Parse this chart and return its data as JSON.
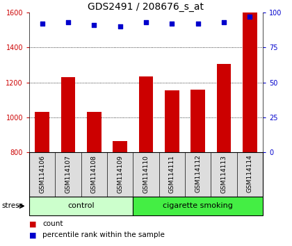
{
  "title": "GDS2491 / 208676_s_at",
  "samples": [
    "GSM114106",
    "GSM114107",
    "GSM114108",
    "GSM114109",
    "GSM114110",
    "GSM114111",
    "GSM114112",
    "GSM114113",
    "GSM114114"
  ],
  "counts": [
    1030,
    1230,
    1030,
    865,
    1235,
    1155,
    1160,
    1305,
    1600
  ],
  "percentile_ranks": [
    92,
    93,
    91,
    90,
    93,
    92,
    92,
    93,
    97
  ],
  "ylim_left": [
    800,
    1600
  ],
  "ylim_right": [
    0,
    100
  ],
  "yticks_left": [
    800,
    1000,
    1200,
    1400,
    1600
  ],
  "yticks_right": [
    0,
    25,
    50,
    75,
    100
  ],
  "groups": [
    {
      "label": "control",
      "indices": [
        0,
        1,
        2,
        3
      ],
      "color": "#ccffcc"
    },
    {
      "label": "cigarette smoking",
      "indices": [
        4,
        5,
        6,
        7,
        8
      ],
      "color": "#44ee44"
    }
  ],
  "bar_color": "#cc0000",
  "dot_color": "#0000cc",
  "bar_width": 0.55,
  "grid_color": "black",
  "grid_linestyle": "dotted",
  "stress_label": "stress",
  "legend_count_label": "count",
  "legend_pct_label": "percentile rank within the sample",
  "left_tick_color": "#cc0000",
  "right_tick_color": "#0000cc",
  "title_fontsize": 10,
  "tick_fontsize": 7,
  "label_fontsize": 7.5,
  "sample_fontsize": 6.5,
  "group_label_fontsize": 8,
  "stress_fontsize": 7.5
}
